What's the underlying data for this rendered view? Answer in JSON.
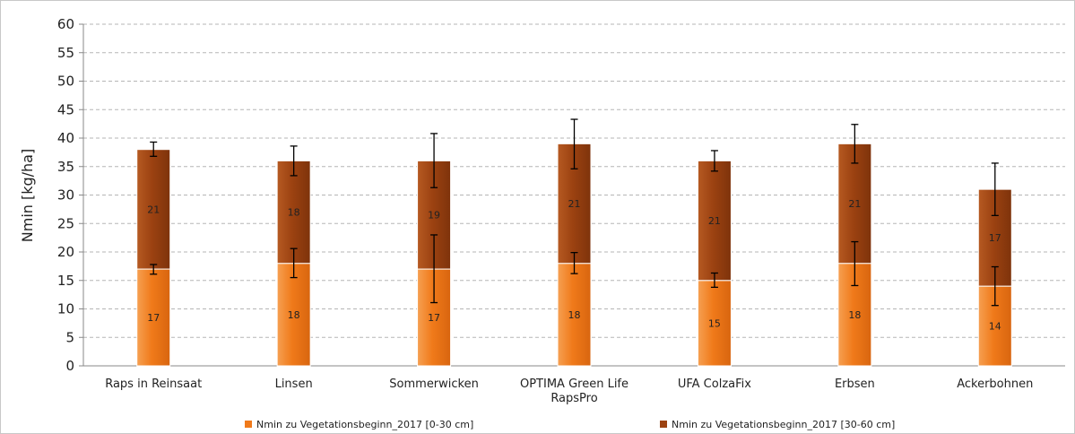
{
  "chart_data": {
    "type": "bar",
    "stacked": true,
    "ylabel": "Nmin [kg/ha]",
    "ylim": [
      0,
      60
    ],
    "ytick_step": 5,
    "grid": true,
    "legend_position": "bottom",
    "categories": [
      "Raps in Reinsaat",
      "Linsen",
      "Sommerwicken",
      "OPTIMA  Green Life RapsPro",
      "UFA ColzaFix",
      "Erbsen",
      "Ackerbohnen"
    ],
    "category_lines": [
      [
        "Raps in Reinsaat"
      ],
      [
        "Linsen"
      ],
      [
        "Sommerwicken"
      ],
      [
        "OPTIMA  Green Life",
        "RapsPro"
      ],
      [
        "UFA ColzaFix"
      ],
      [
        "Erbsen"
      ],
      [
        "Ackerbohnen"
      ]
    ],
    "series": [
      {
        "name": "Nmin zu Vegetationsbeginn_2017 [0-30 cm]",
        "color": "#f07a1a",
        "values": [
          17,
          18,
          17,
          18,
          15,
          18,
          14
        ],
        "error_low": [
          16.1,
          15.5,
          11.1,
          16.2,
          13.8,
          14.1,
          10.6
        ],
        "error_high": [
          17.8,
          20.6,
          23.0,
          19.9,
          16.3,
          21.8,
          17.4
        ]
      },
      {
        "name": "Nmin zu Vegetationsbeginn_2017 [30-60 cm]",
        "color": "#9c4211",
        "values": [
          21,
          18,
          19,
          21,
          21,
          21,
          17
        ],
        "error_low": [
          36.8,
          33.4,
          31.3,
          34.6,
          34.2,
          35.6,
          26.4
        ],
        "error_high": [
          39.3,
          38.6,
          40.8,
          43.3,
          37.8,
          42.4,
          35.6
        ]
      }
    ]
  }
}
